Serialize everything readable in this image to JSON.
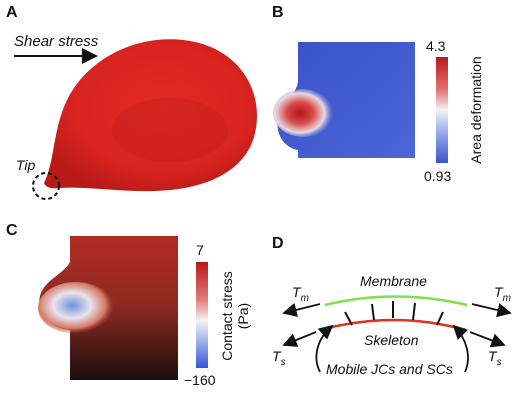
{
  "panels": {
    "a": {
      "label": "A",
      "shear_stress_text": "Shear stress",
      "tip_text": "Tip",
      "cell_color": "#d8231f"
    },
    "b": {
      "label": "B",
      "colorbar_max": "4.3",
      "colorbar_min": "0.93",
      "colorbar_title": "Area deformation",
      "colors": {
        "high": "#cc1f1f",
        "mid": "#f2f2f2",
        "low": "#3b55c8"
      }
    },
    "c": {
      "label": "C",
      "colorbar_max": "7",
      "colorbar_min": "−160",
      "colorbar_title_line1": "Contact stress",
      "colorbar_title_line2": "(Pa)",
      "colors": {
        "high": "#c81e1e",
        "mid": "#f2f2f2",
        "low": "#2f55d8"
      }
    },
    "d": {
      "label": "D",
      "membrane_text": "Membrane",
      "skeleton_text": "Skeleton",
      "mobile_text": "Mobile JCs and SCs",
      "tm_main": "T",
      "tm_sub": "m",
      "ts_main": "T",
      "ts_sub": "s",
      "membrane_color": "#7ee04a",
      "skeleton_color": "#e5301e"
    }
  }
}
